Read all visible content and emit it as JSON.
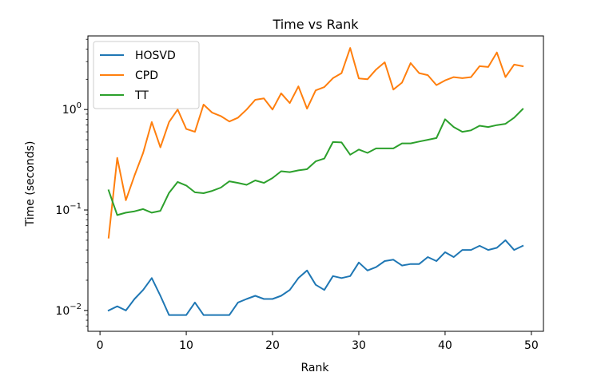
{
  "chart_data": {
    "type": "line",
    "title": "Time vs Rank",
    "xlabel": "Rank",
    "ylabel": "Time (seconds)",
    "yscale": "log",
    "xlim": [
      -1.4,
      51.4
    ],
    "ylim": [
      0.0062,
      5.4
    ],
    "x_ticks": [
      {
        "value": 0,
        "label": "0"
      },
      {
        "value": 10,
        "label": "10"
      },
      {
        "value": 20,
        "label": "20"
      },
      {
        "value": 30,
        "label": "30"
      },
      {
        "value": 40,
        "label": "40"
      },
      {
        "value": 50,
        "label": "50"
      }
    ],
    "y_ticks": [
      {
        "value": 0.01,
        "base": "10",
        "exp": "−2"
      },
      {
        "value": 0.1,
        "base": "10",
        "exp": "−1"
      },
      {
        "value": 1,
        "base": "10",
        "exp": "0"
      }
    ],
    "grid": false,
    "legend_position": "top-left",
    "x": [
      1,
      2,
      3,
      4,
      5,
      6,
      7,
      8,
      9,
      10,
      11,
      12,
      13,
      14,
      15,
      16,
      17,
      18,
      19,
      20,
      21,
      22,
      23,
      24,
      25,
      26,
      27,
      28,
      29,
      30,
      31,
      32,
      33,
      34,
      35,
      36,
      37,
      38,
      39,
      40,
      41,
      42,
      43,
      44,
      45,
      46,
      47,
      48,
      49
    ],
    "series": [
      {
        "name": "HOSVD",
        "color": "#1f77b4",
        "values": [
          0.01,
          0.011,
          0.01,
          0.013,
          0.016,
          0.021,
          0.014,
          0.009,
          0.009,
          0.009,
          0.012,
          0.009,
          0.009,
          0.009,
          0.009,
          0.012,
          0.013,
          0.014,
          0.013,
          0.013,
          0.014,
          0.016,
          0.021,
          0.025,
          0.018,
          0.016,
          0.022,
          0.021,
          0.022,
          0.03,
          0.025,
          0.027,
          0.031,
          0.032,
          0.028,
          0.029,
          0.029,
          0.034,
          0.031,
          0.038,
          0.034,
          0.04,
          0.04,
          0.044,
          0.04,
          0.042,
          0.05,
          0.04,
          0.044
        ]
      },
      {
        "name": "CPD",
        "color": "#ff7f0e",
        "values": [
          0.053,
          0.33,
          0.125,
          0.22,
          0.37,
          0.75,
          0.42,
          0.75,
          1.0,
          0.64,
          0.6,
          1.12,
          0.93,
          0.86,
          0.76,
          0.83,
          1.0,
          1.25,
          1.29,
          1.0,
          1.45,
          1.16,
          1.7,
          1.02,
          1.55,
          1.67,
          2.05,
          2.3,
          4.1,
          2.04,
          2.0,
          2.5,
          2.95,
          1.58,
          1.85,
          2.9,
          2.3,
          2.2,
          1.75,
          1.95,
          2.1,
          2.05,
          2.1,
          2.7,
          2.65,
          3.7,
          2.1,
          2.8,
          2.7
        ]
      },
      {
        "name": "TT",
        "color": "#2ca02c",
        "values": [
          0.157,
          0.089,
          0.094,
          0.097,
          0.102,
          0.094,
          0.098,
          0.148,
          0.19,
          0.175,
          0.15,
          0.147,
          0.155,
          0.167,
          0.193,
          0.186,
          0.178,
          0.197,
          0.186,
          0.208,
          0.243,
          0.238,
          0.248,
          0.255,
          0.305,
          0.325,
          0.475,
          0.47,
          0.355,
          0.4,
          0.37,
          0.41,
          0.41,
          0.41,
          0.46,
          0.46,
          0.48,
          0.5,
          0.52,
          0.8,
          0.67,
          0.6,
          0.62,
          0.69,
          0.67,
          0.7,
          0.72,
          0.83,
          1.01
        ]
      }
    ]
  }
}
